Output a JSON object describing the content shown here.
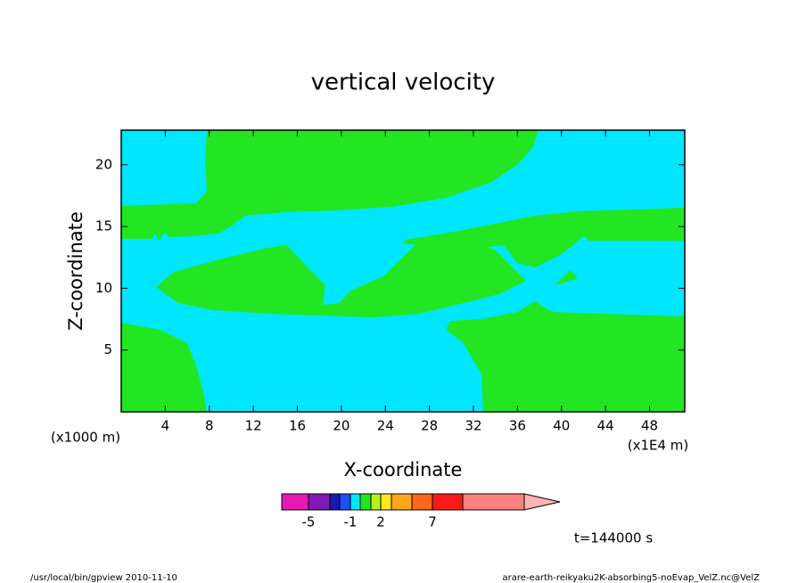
{
  "chart_data": {
    "type": "contour",
    "title": "vertical velocity",
    "x_label": "X-coordinate",
    "y_label": "Z-coordinate",
    "x_unit_label": "(x1E4 m)",
    "y_unit_label": "(x1000 m)",
    "xlim": [
      0,
      51.2
    ],
    "ylim": [
      0,
      22.8
    ],
    "xticks": [
      4,
      8,
      12,
      16,
      20,
      24,
      28,
      32,
      36,
      40,
      44,
      48
    ],
    "yticks": [
      5,
      10,
      15,
      20
    ],
    "background_color": "#00e6ff",
    "region_color": "#22e622",
    "colorbar": {
      "colors": [
        "#e619b3",
        "#8019b3",
        "#1919b3",
        "#1f4dff",
        "#00e6ff",
        "#22e622",
        "#b3f21a",
        "#ffe61a",
        "#ffa61a",
        "#ff661a",
        "#ff1a1a",
        "#ff8080",
        "#ffb3b3"
      ],
      "ticks": [
        -5,
        -1,
        2,
        7
      ]
    },
    "time_label": "t=144000 s",
    "footer_left": "/usr/local/bin/gpview   2010-11-10",
    "footer_right": "arare-earth-reikyaku2K-absorbing5-noEvap_VelZ.nc@VelZ"
  }
}
